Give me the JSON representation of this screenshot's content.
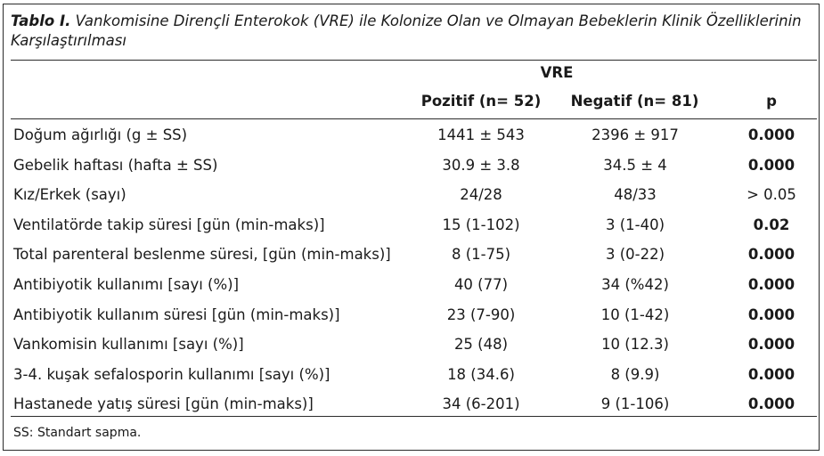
{
  "caption": {
    "label": "Tablo I.",
    "text": "Vankomisine Dirençli Enterokok (VRE) ile Kolonize Olan ve Olmayan Bebeklerin Klinik Özelliklerinin Karşılaştırılması"
  },
  "header": {
    "group": "VRE",
    "positive": "Pozitif (n= 52)",
    "negative": "Negatif (n= 81)",
    "p": "p"
  },
  "rows": [
    {
      "name": "Doğum ağırlığı (g ± SS)",
      "pos": "1441 ± 543",
      "neg": "2396 ± 917",
      "p": "0.000"
    },
    {
      "name": "Gebelik haftası (hafta ± SS)",
      "pos": "30.9 ± 3.8",
      "neg": "34.5 ± 4",
      "p": "0.000"
    },
    {
      "name": "Kız/Erkek (sayı)",
      "pos": "24/28",
      "neg": "48/33",
      "p": "> 0.05"
    },
    {
      "name": "Ventilatörde takip süresi [gün (min-maks)]",
      "pos": "15 (1-102)",
      "neg": "3 (1-40)",
      "p": "0.02"
    },
    {
      "name": "Total parenteral beslenme süresi, [gün (min-maks)]",
      "pos": "8 (1-75)",
      "neg": "3 (0-22)",
      "p": "0.000"
    },
    {
      "name": "Antibiyotik kullanımı [sayı (%)]",
      "pos": "40 (77)",
      "neg": "34 (%42)",
      "p": "0.000"
    },
    {
      "name": "Antibiyotik kullanım süresi [gün (min-maks)]",
      "pos": "23 (7-90)",
      "neg": "10 (1-42)",
      "p": "0.000"
    },
    {
      "name": "Vankomisin kullanımı [sayı (%)]",
      "pos": "25 (48)",
      "neg": "10 (12.3)",
      "p": "0.000"
    },
    {
      "name": "3-4. kuşak sefalosporin kullanımı [sayı (%)]",
      "pos": "18 (34.6)",
      "neg": "8 (9.9)",
      "p": "0.000"
    },
    {
      "name": "Hastanede yatış süresi [gün (min-maks)]",
      "pos": "34 (6-201)",
      "neg": "9 (1-106)",
      "p": "0.000"
    }
  ],
  "footnote": "SS: Standart sapma."
}
